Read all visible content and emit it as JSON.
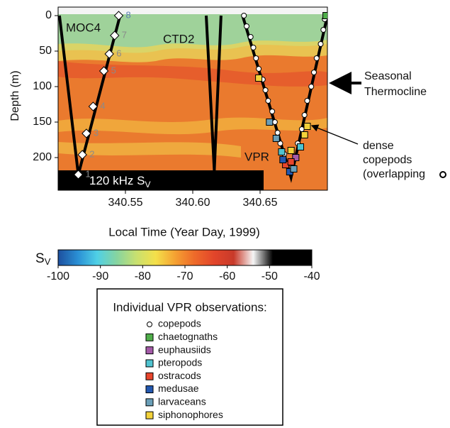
{
  "chart_data": {
    "type": "echogram",
    "xlabel": "Local Time (Year Day, 1999)",
    "ylabel": "Depth (m)",
    "xlim": [
      340.5,
      340.7
    ],
    "ylim": [
      -12,
      246
    ],
    "xticks": [
      340.55,
      {
        "value": 340.6,
        "label": "340.60"
      },
      340.65
    ],
    "yticks": [
      0,
      50,
      100,
      150,
      200
    ],
    "image_label": {
      "main": "120 kHz S",
      "sub": "V"
    },
    "tracks": [
      {
        "x": [
          340.501,
          340.515,
          340.546
        ],
        "values": [
          0,
          224,
          0
        ]
      },
      {
        "x": [
          340.61,
          340.616,
          340.621
        ],
        "values": [
          0,
          218,
          0
        ]
      },
      {
        "x": [
          340.637,
          340.673,
          340.7
        ],
        "values": [
          0,
          228,
          0
        ]
      }
    ],
    "nets": {
      "x": [
        340.515,
        340.518,
        340.521,
        340.526,
        340.534,
        340.538,
        340.542,
        340.545
      ],
      "values": [
        224,
        196,
        166,
        128,
        78,
        54,
        28,
        0
      ],
      "labels": [
        "1",
        "2",
        "3",
        "4",
        "5",
        "6",
        "7",
        "8"
      ]
    },
    "annotations": {
      "moc": "MOC4",
      "ctd": "CTD2",
      "vpr": "VPR",
      "thermocline": [
        "Seasonal",
        "Thermocline"
      ],
      "copepods": [
        "dense",
        "copepods",
        "(overlapping"
      ]
    },
    "colorbar": {
      "label": {
        "main": "S",
        "sub": "V"
      },
      "lim": [
        -100,
        -40
      ],
      "ticks": [
        -100,
        -90,
        -80,
        -70,
        -60,
        -50,
        -40
      ],
      "colors": [
        "#1d4f9e",
        "#2a8fd4",
        "#4fd0e6",
        "#86d4a0",
        "#c8e070",
        "#f4e04a",
        "#f5a132",
        "#ee6a2a",
        "#e2452a",
        "#c83a2a",
        "#f6f6f6",
        "#000000",
        "#000000",
        "#000000"
      ]
    },
    "legend_title": "Individual VPR observations:",
    "series": [
      {
        "name": "copepods",
        "color": "#ffffff",
        "marker": "circle",
        "x": [
          340.638,
          340.64,
          340.643,
          340.645,
          340.647,
          340.649,
          340.652,
          340.654,
          340.656,
          340.659,
          340.661,
          340.663,
          340.665,
          340.668,
          340.67,
          340.676,
          340.678,
          340.681,
          340.683,
          340.685,
          340.688,
          340.69,
          340.692,
          340.695,
          340.697,
          340.698
        ],
        "values": [
          0,
          15,
          30,
          45,
          60,
          75,
          90,
          105,
          120,
          135,
          150,
          165,
          180,
          195,
          210,
          200,
          180,
          160,
          140,
          120,
          100,
          80,
          60,
          40,
          20,
          5
        ]
      },
      {
        "name": "chaetognaths",
        "color": "#4fae4a",
        "marker": "square",
        "x": [
          340.699
        ],
        "values": [
          0
        ]
      },
      {
        "name": "euphausiids",
        "color": "#a45aa8",
        "marker": "square",
        "x": [
          340.6765
        ],
        "values": [
          200
        ]
      },
      {
        "name": "pteropods",
        "color": "#4fc3d0",
        "marker": "square",
        "x": [
          340.666,
          340.68
        ],
        "values": [
          192,
          185
        ]
      },
      {
        "name": "ostracods",
        "color": "#e8452c",
        "marker": "square",
        "x": [
          340.669,
          340.673
        ],
        "values": [
          210,
          206
        ]
      },
      {
        "name": "medusae",
        "color": "#2358b0",
        "marker": "square",
        "x": [
          340.672,
          340.667
        ],
        "values": [
          220,
          203
        ]
      },
      {
        "name": "larvaceans",
        "color": "#6a9fb8",
        "marker": "square",
        "x": [
          340.657,
          340.662,
          340.675
        ],
        "values": [
          150,
          173,
          216
        ]
      },
      {
        "name": "siphonophores",
        "color": "#f3d23a",
        "marker": "square",
        "x": [
          340.649,
          340.683,
          340.685,
          340.673
        ],
        "values": [
          88,
          168,
          156,
          190
        ]
      }
    ]
  }
}
